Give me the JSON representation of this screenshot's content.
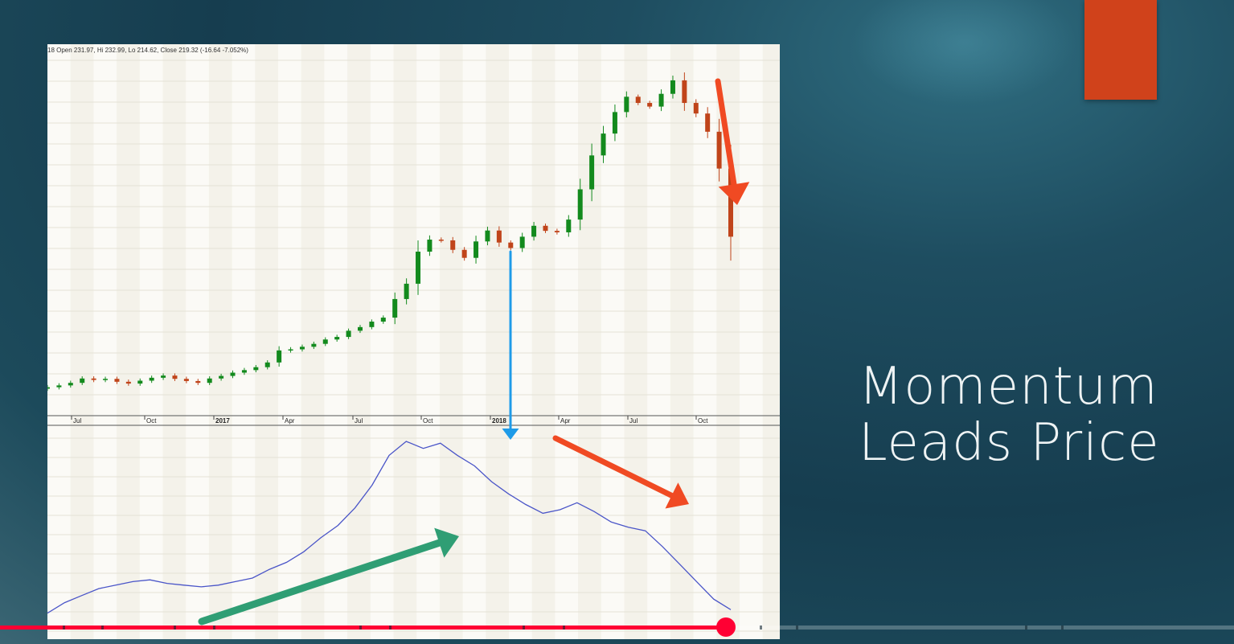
{
  "slide": {
    "title_line1": "Momentum",
    "title_line2": "Leads Price",
    "accent_color": "#d0421b"
  },
  "chart_data": {
    "type": "candlestick",
    "ohlc_readout": "18 Open 231.97, Hi 232.99, Lo 214.62, Close 219.32 (-16.64 -7.052%)",
    "x_ticks": [
      "Jul",
      "Oct",
      "2017",
      "Apr",
      "Jul",
      "Oct",
      "2018",
      "Apr",
      "Jul",
      "Oct"
    ],
    "bold_ticks": [
      "2017",
      "2018"
    ],
    "colors": {
      "up": "#138a1d",
      "down": "#c0441a",
      "momentum_line": "#4a55c8",
      "blue_arrow": "#1e9be8",
      "red_arrow": "#f04a23",
      "green_arrow": "#2f9e74"
    },
    "price_closes": [
      0.3,
      0.8,
      1.5,
      2.7,
      2.3,
      2.6,
      1.8,
      1.3,
      2.1,
      2.9,
      3.5,
      2.6,
      2.0,
      1.5,
      2.7,
      3.4,
      4.3,
      5.0,
      5.8,
      7.1,
      10.4,
      10.7,
      11.4,
      12.2,
      13.4,
      14.1,
      15.8,
      16.8,
      18.3,
      19.4,
      24.5,
      28.7,
      37.5,
      40.8,
      40.6,
      38.0,
      35.8,
      40.3,
      43.3,
      40.0,
      38.5,
      41.6,
      44.6,
      43.2,
      42.8,
      46.3,
      54.6,
      63.9,
      69.9,
      75.8,
      80.0,
      78.3,
      77.3,
      80.8,
      84.5,
      78.3,
      75.4,
      70.4,
      60.3,
      41.6
    ],
    "momentum_values": [
      2,
      8,
      12,
      16,
      18,
      20,
      21,
      19,
      18,
      17,
      18,
      20,
      22,
      27,
      31,
      37,
      45,
      52,
      62,
      75,
      92,
      100,
      96,
      99,
      92,
      86,
      77,
      70,
      64,
      59,
      61,
      65,
      60,
      54,
      51,
      49,
      40,
      30,
      20,
      10,
      4
    ],
    "annotations": [
      {
        "kind": "arrow",
        "color": "blue",
        "meaning": "price high aligned with momentum peak"
      },
      {
        "kind": "arrow",
        "color": "green",
        "meaning": "momentum rising"
      },
      {
        "kind": "arrow",
        "color": "red",
        "meaning": "momentum falling"
      },
      {
        "kind": "arrow",
        "color": "red",
        "meaning": "price falling"
      }
    ]
  },
  "player": {
    "progress": 0.588
  }
}
